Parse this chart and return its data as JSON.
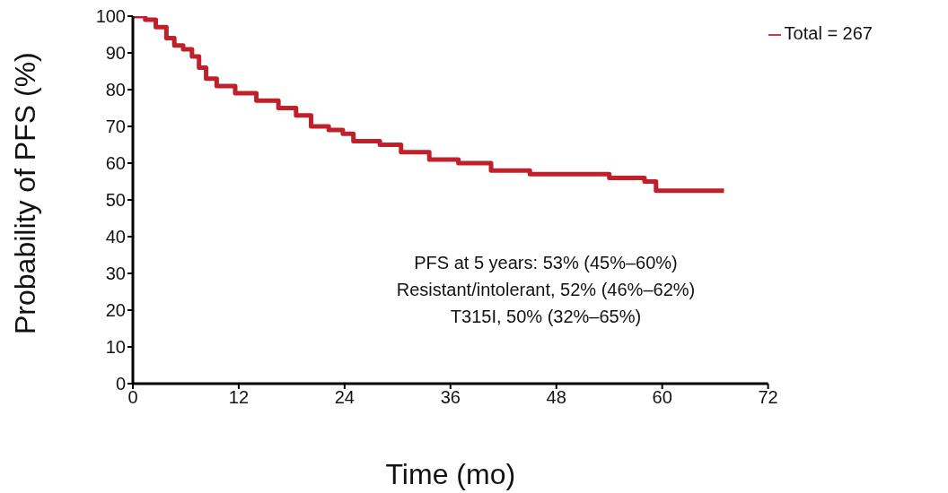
{
  "chart_data": {
    "type": "step",
    "xlabel": "Time (mo)",
    "ylabel": "Probability of PFS (%)",
    "x": [
      0,
      1.4,
      2.6,
      3.8,
      4.7,
      5.7,
      6.7,
      7.5,
      8.3,
      9.5,
      11.6,
      14,
      16.5,
      18.5,
      20.2,
      22.2,
      23.8,
      25,
      28,
      30.4,
      33.6,
      36.9,
      40.6,
      45,
      52.4,
      54,
      58,
      59.3,
      67
    ],
    "series": [
      {
        "name": "Total = 267",
        "color": "#c0202a",
        "values": [
          100,
          99,
          97,
          94,
          92,
          91,
          89,
          86,
          83,
          81,
          79,
          77,
          75,
          73,
          70,
          69,
          68,
          66,
          65,
          63,
          61,
          60,
          58,
          57,
          57,
          56,
          55,
          52.5,
          52.5
        ]
      }
    ],
    "xlim": [
      0,
      72
    ],
    "xticks": [
      0,
      12,
      24,
      36,
      48,
      60,
      72
    ],
    "ylim": [
      0,
      100
    ],
    "yticks": [
      0,
      10,
      20,
      30,
      40,
      50,
      60,
      70,
      80,
      90,
      100
    ],
    "annotations": [
      "PFS at 5 years: 53% (45%–60%)",
      "Resistant/intolerant, 52% (46%–62%)",
      "T315I, 50% (32%–65%)"
    ],
    "grid": false,
    "legend": "top right",
    "line_style": "solid"
  }
}
